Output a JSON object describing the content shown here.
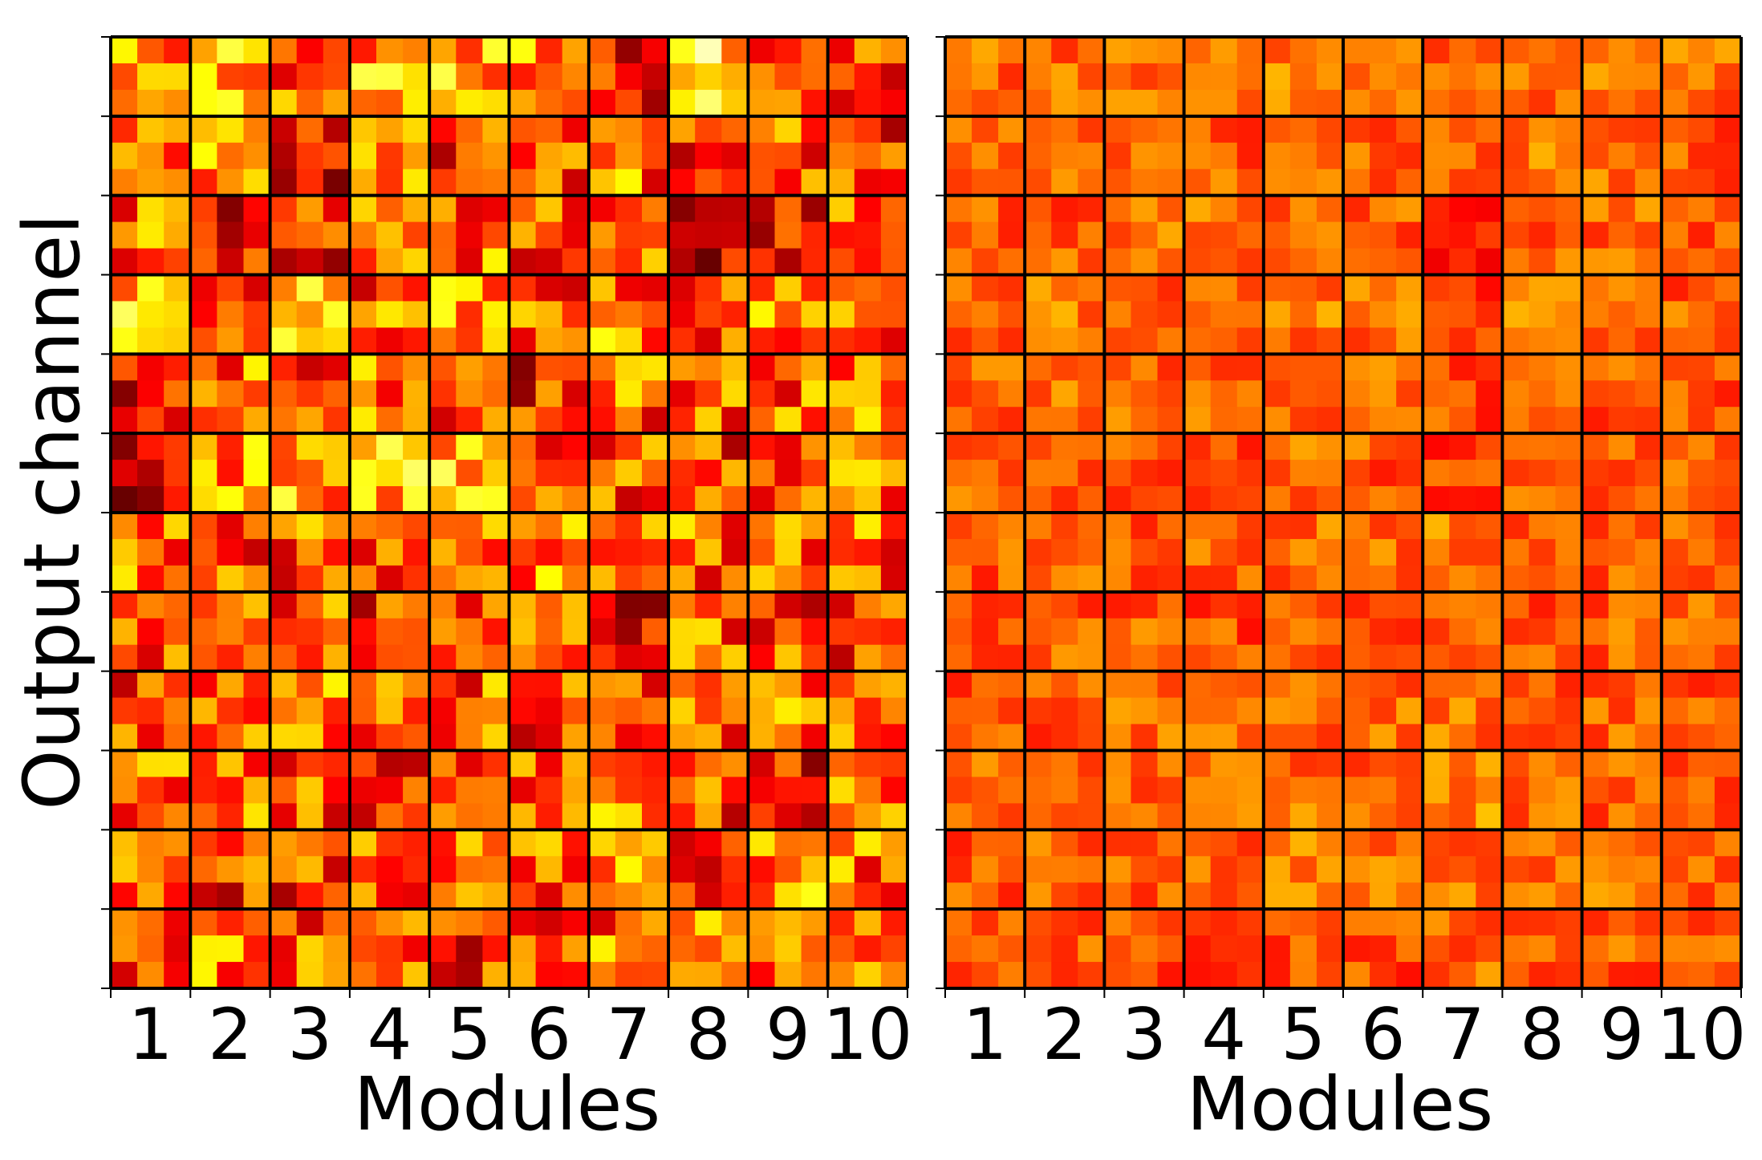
{
  "chart_data": [
    {
      "type": "heatmap",
      "panel": "left",
      "xlabel": "Modules",
      "ylabel": "Output channel",
      "x_tick_labels": [
        "1",
        "2",
        "3",
        "4",
        "5",
        "6",
        "7",
        "8",
        "9",
        "10"
      ],
      "block_grid": [
        12,
        10
      ],
      "cells_per_block": [
        3,
        3
      ],
      "colormap": "hot",
      "block_intensity": [
        [
          0.55,
          0.62,
          0.5,
          0.6,
          0.62,
          0.58,
          0.4,
          0.72,
          0.55,
          0.42
        ],
        [
          0.46,
          0.58,
          0.38,
          0.56,
          0.46,
          0.46,
          0.52,
          0.42,
          0.5,
          0.44
        ],
        [
          0.5,
          0.34,
          0.42,
          0.5,
          0.52,
          0.5,
          0.46,
          0.36,
          0.38,
          0.48
        ],
        [
          0.62,
          0.5,
          0.68,
          0.5,
          0.58,
          0.5,
          0.54,
          0.46,
          0.52,
          0.5
        ],
        [
          0.4,
          0.54,
          0.4,
          0.55,
          0.48,
          0.4,
          0.5,
          0.52,
          0.5,
          0.54
        ],
        [
          0.36,
          0.56,
          0.6,
          0.64,
          0.62,
          0.52,
          0.5,
          0.46,
          0.5,
          0.54
        ],
        [
          0.54,
          0.5,
          0.48,
          0.5,
          0.6,
          0.55,
          0.56,
          0.5,
          0.48,
          0.52
        ],
        [
          0.5,
          0.48,
          0.52,
          0.44,
          0.48,
          0.5,
          0.38,
          0.5,
          0.46,
          0.42
        ],
        [
          0.46,
          0.5,
          0.52,
          0.5,
          0.5,
          0.48,
          0.5,
          0.48,
          0.52,
          0.52
        ],
        [
          0.52,
          0.5,
          0.5,
          0.46,
          0.52,
          0.48,
          0.54,
          0.46,
          0.36,
          0.56
        ],
        [
          0.5,
          0.44,
          0.44,
          0.5,
          0.5,
          0.52,
          0.56,
          0.42,
          0.56,
          0.5
        ],
        [
          0.5,
          0.52,
          0.5,
          0.54,
          0.42,
          0.5,
          0.52,
          0.52,
          0.46,
          0.6
        ]
      ]
    },
    {
      "type": "heatmap",
      "panel": "right",
      "xlabel": "Modules",
      "ylabel": "",
      "x_tick_labels": [
        "1",
        "2",
        "3",
        "4",
        "5",
        "6",
        "7",
        "8",
        "9",
        "10"
      ],
      "block_grid": [
        12,
        10
      ],
      "cells_per_block": [
        3,
        3
      ],
      "colormap": "hot",
      "block_intensity": [
        [
          0.52,
          0.52,
          0.52,
          0.52,
          0.56,
          0.52,
          0.48,
          0.54,
          0.54,
          0.52
        ],
        [
          0.5,
          0.52,
          0.5,
          0.5,
          0.5,
          0.52,
          0.5,
          0.54,
          0.52,
          0.5
        ],
        [
          0.5,
          0.5,
          0.52,
          0.52,
          0.52,
          0.5,
          0.44,
          0.5,
          0.52,
          0.5
        ],
        [
          0.52,
          0.54,
          0.52,
          0.52,
          0.54,
          0.52,
          0.42,
          0.56,
          0.52,
          0.5
        ],
        [
          0.5,
          0.52,
          0.52,
          0.52,
          0.52,
          0.52,
          0.48,
          0.52,
          0.5,
          0.5
        ],
        [
          0.52,
          0.5,
          0.5,
          0.48,
          0.52,
          0.5,
          0.46,
          0.5,
          0.52,
          0.52
        ],
        [
          0.5,
          0.5,
          0.5,
          0.5,
          0.52,
          0.52,
          0.54,
          0.52,
          0.5,
          0.5
        ],
        [
          0.5,
          0.5,
          0.5,
          0.48,
          0.5,
          0.5,
          0.5,
          0.5,
          0.5,
          0.5
        ],
        [
          0.5,
          0.5,
          0.52,
          0.52,
          0.52,
          0.52,
          0.52,
          0.5,
          0.52,
          0.5
        ],
        [
          0.5,
          0.52,
          0.52,
          0.52,
          0.52,
          0.5,
          0.56,
          0.52,
          0.5,
          0.5
        ],
        [
          0.5,
          0.5,
          0.5,
          0.52,
          0.54,
          0.52,
          0.54,
          0.5,
          0.52,
          0.5
        ],
        [
          0.5,
          0.5,
          0.48,
          0.48,
          0.48,
          0.48,
          0.52,
          0.5,
          0.5,
          0.52
        ]
      ]
    }
  ]
}
